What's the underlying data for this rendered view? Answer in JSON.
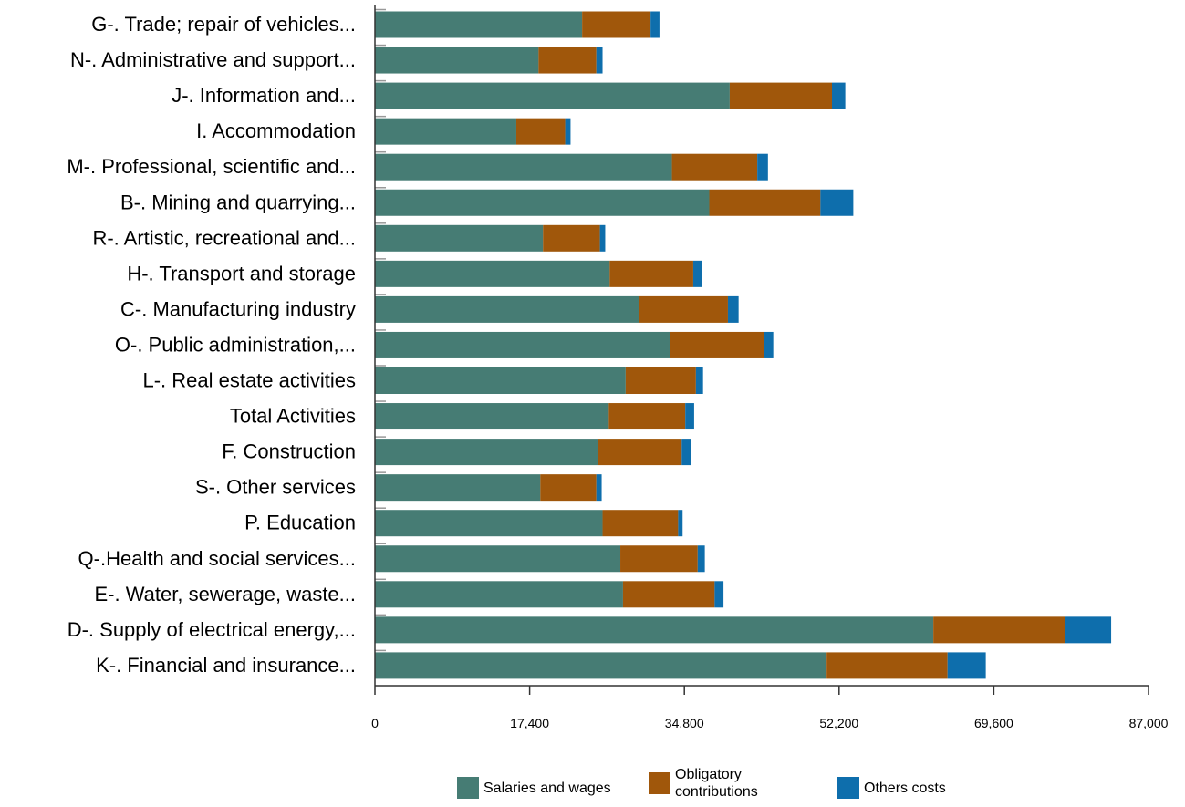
{
  "chart_data": {
    "type": "bar",
    "orientation": "horizontal",
    "stacked": true,
    "categories": [
      "G-. Trade; repair of vehicles...",
      "N-. Administrative and support...",
      "J-. Information and...",
      "I. Accommodation",
      "M-. Professional, scientific and...",
      "B-. Mining and quarrying...",
      "R-. Artistic, recreational and...",
      "H-. Transport and storage",
      "C-. Manufacturing industry",
      "O-. Public administration,...",
      "L-. Real estate activities",
      "Total Activities",
      "F. Construction",
      "S-. Other services",
      "P. Education",
      "Q-.Health and social services...",
      "E-. Water, sewerage, waste...",
      "D-. Supply of electrical energy,...",
      "K-. Financial and insurance..."
    ],
    "series": [
      {
        "name": "Salaries and wages",
        "color": "#467c74",
        "values": [
          23300,
          18400,
          39900,
          15900,
          33400,
          37600,
          18900,
          26400,
          29700,
          33200,
          28200,
          26300,
          25100,
          18600,
          25600,
          27600,
          27900,
          62800,
          50800
        ]
      },
      {
        "name": "Obligatory contributions",
        "color": "#a0570b",
        "values": [
          7700,
          6500,
          11500,
          5500,
          9600,
          12500,
          6400,
          9400,
          10000,
          10600,
          7900,
          8600,
          9400,
          6300,
          8500,
          8700,
          10300,
          14800,
          13600
        ]
      },
      {
        "name": "Others costs",
        "color": "#0e6eac",
        "values": [
          1000,
          700,
          1500,
          600,
          1200,
          3700,
          600,
          1000,
          1200,
          1000,
          800,
          1000,
          1000,
          600,
          500,
          800,
          1000,
          5200,
          4300
        ]
      }
    ],
    "xlim": [
      0,
      87000
    ],
    "xticks": [
      "0",
      "17,400",
      "34,800",
      "52,200",
      "69,600",
      "87,000"
    ],
    "xlabel": "",
    "ylabel": "",
    "grid": false,
    "legend_position": "bottom"
  }
}
